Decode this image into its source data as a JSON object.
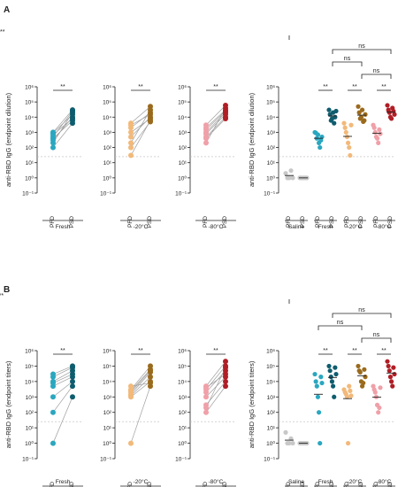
{
  "colors": {
    "pfd": [
      "#2aa7c0",
      "#f2b97a",
      "#f0a0a8"
    ],
    "psd": [
      "#0e5d6e",
      "#9a6a1d",
      "#b01e26"
    ],
    "saline": "#c8c8c8",
    "line": "#9e9e9e",
    "ink": "#222222",
    "dash": "#bbbbbb"
  },
  "chart_data": [
    {
      "panel": "A",
      "kind": "paired",
      "type": "scatter",
      "ylabel": "anti-RBD IgG (endpoint dilution)",
      "ylim_log10": [
        -1,
        6
      ],
      "cutoff": 25,
      "groups": [
        {
          "name": "Fresh",
          "x": [
            "PFD",
            "PSD"
          ],
          "sig": "**",
          "pfd": [
            1000,
            900,
            400,
            700,
            200,
            100,
            300,
            500
          ],
          "psd": [
            30000,
            15000,
            6000,
            8000,
            20000,
            4000,
            10000,
            25000
          ]
        },
        {
          "name": "-20°C",
          "x": [
            "PFD",
            "PSD"
          ],
          "sig": "**",
          "pfd": [
            4000,
            2000,
            1000,
            500,
            200,
            100,
            30,
            3000
          ],
          "psd": [
            50000,
            20000,
            8000,
            10000,
            30000,
            5000,
            6000,
            15000
          ]
        },
        {
          "name": "-80°C",
          "x": [
            "PFD",
            "PSD"
          ],
          "sig": "**",
          "pfd": [
            3000,
            2000,
            1000,
            500,
            400,
            200,
            1500,
            800
          ],
          "psd": [
            60000,
            30000,
            20000,
            10000,
            8000,
            40000,
            25000,
            15000
          ]
        }
      ]
    },
    {
      "panel": "A",
      "kind": "grouped",
      "type": "scatter",
      "ylabel": "anti-RBD IgG (endpoint dilution)",
      "ylim_log10": [
        -1,
        6
      ],
      "cutoff": 25,
      "groups": [
        {
          "name": "Saline",
          "x": [
            "PFD",
            "PSD"
          ],
          "pfd": [
            2,
            1,
            1,
            3,
            1
          ],
          "psd": [
            1,
            1,
            1,
            1,
            1
          ]
        },
        {
          "name": "Fresh",
          "x": [
            "PFD",
            "PSD"
          ],
          "pfd": [
            1000,
            900,
            400,
            700,
            200,
            100,
            300,
            500
          ],
          "psd": [
            30000,
            15000,
            6000,
            8000,
            20000,
            4000,
            10000,
            25000
          ]
        },
        {
          "name": "-20°C",
          "x": [
            "PFD",
            "PSD"
          ],
          "pfd": [
            4000,
            2000,
            1000,
            500,
            200,
            100,
            30,
            3000
          ],
          "psd": [
            50000,
            20000,
            8000,
            10000,
            30000,
            5000,
            6000,
            15000
          ]
        },
        {
          "name": "-80°C",
          "x": [
            "PFD",
            "PSD"
          ],
          "pfd": [
            3000,
            2000,
            1000,
            500,
            400,
            200,
            1500,
            800
          ],
          "psd": [
            60000,
            30000,
            20000,
            10000,
            8000,
            40000,
            25000,
            15000
          ]
        }
      ],
      "inner_sig": [
        "",
        "**",
        "**",
        "**"
      ],
      "brackets": [
        {
          "from": [
            0,
            0
          ],
          "to": [
            1,
            3
          ],
          "label": "****"
        },
        {
          "from": [
            1,
            1
          ],
          "to": [
            3,
            1
          ],
          "label": "ns"
        },
        {
          "from": [
            1,
            1
          ],
          "to": [
            2,
            1
          ],
          "label": "ns"
        },
        {
          "from": [
            2,
            1
          ],
          "to": [
            3,
            1
          ],
          "label": "ns"
        }
      ]
    },
    {
      "panel": "B",
      "kind": "paired",
      "type": "scatter",
      "ylabel": "anti-RBD IgG (endpoint titers)",
      "ylim_log10": [
        -1,
        6
      ],
      "cutoff": 25,
      "groups": [
        {
          "name": "Fresh",
          "x": [
            "PFD",
            "PSD"
          ],
          "sig": "**",
          "pfd": [
            30000,
            10000,
            5000,
            1000,
            100,
            1,
            20000,
            8000
          ],
          "psd": [
            100000,
            50000,
            20000,
            10000,
            5000,
            1000,
            80000,
            30000
          ]
        },
        {
          "name": "-20°C",
          "x": [
            "PFD",
            "PSD"
          ],
          "sig": "**",
          "pfd": [
            3000,
            2000,
            1500,
            1000,
            1,
            5000,
            2500,
            1200
          ],
          "psd": [
            100000,
            50000,
            40000,
            10000,
            5000,
            8000,
            60000,
            20000
          ]
        },
        {
          "name": "-80°C",
          "x": [
            "PFD",
            "PSD"
          ],
          "sig": "**",
          "pfd": [
            5000,
            3000,
            2000,
            1000,
            300,
            100,
            200,
            4000
          ],
          "psd": [
            200000,
            100000,
            50000,
            20000,
            10000,
            5000,
            80000,
            30000
          ]
        }
      ]
    },
    {
      "panel": "B",
      "kind": "grouped",
      "type": "scatter",
      "ylabel": "anti-RBD IgG (endpoint titers)",
      "ylim_log10": [
        -1,
        6
      ],
      "cutoff": 25,
      "groups": [
        {
          "name": "Saline",
          "x": [
            "PFD",
            "PSD"
          ],
          "pfd": [
            5,
            1,
            1,
            2,
            1
          ],
          "psd": [
            1,
            1,
            1,
            1,
            1
          ]
        },
        {
          "name": "Fresh",
          "x": [
            "PFD",
            "PSD"
          ],
          "pfd": [
            30000,
            10000,
            5000,
            1000,
            100,
            1,
            20000,
            8000
          ],
          "psd": [
            100000,
            50000,
            20000,
            10000,
            5000,
            1000,
            80000,
            30000
          ]
        },
        {
          "name": "-20°C",
          "x": [
            "PFD",
            "PSD"
          ],
          "pfd": [
            3000,
            2000,
            1500,
            1000,
            1,
            5000,
            2500,
            1200
          ],
          "psd": [
            100000,
            50000,
            40000,
            10000,
            5000,
            8000,
            60000,
            20000
          ]
        },
        {
          "name": "-80°C",
          "x": [
            "PFD",
            "PSD"
          ],
          "pfd": [
            5000,
            3000,
            2000,
            1000,
            300,
            100,
            200,
            4000
          ],
          "psd": [
            200000,
            100000,
            50000,
            20000,
            10000,
            5000,
            80000,
            30000
          ]
        }
      ],
      "inner_sig": [
        "",
        "**",
        "**",
        "**"
      ],
      "brackets": [
        {
          "from": [
            0,
            0
          ],
          "to": [
            1,
            3
          ],
          "label": "***"
        },
        {
          "from": [
            1,
            1
          ],
          "to": [
            3,
            1
          ],
          "label": "ns"
        },
        {
          "from": [
            1,
            0
          ],
          "to": [
            2,
            1
          ],
          "label": "ns"
        },
        {
          "from": [
            2,
            1
          ],
          "to": [
            3,
            1
          ],
          "label": "ns"
        }
      ]
    }
  ]
}
